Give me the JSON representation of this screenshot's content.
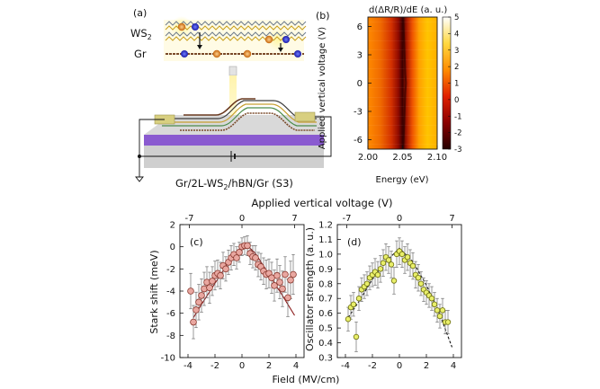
{
  "panel_a": {
    "label": "(a)",
    "layer_top": "WS",
    "layer_top_sub": "2",
    "layer_bottom": "Gr",
    "caption": "Gr/2L-WS",
    "caption_sub": "2",
    "caption_rest": "/hBN/Gr (S3)"
  },
  "chart_data": [
    {
      "id": "b",
      "type": "heatmap",
      "panel_label": "(b)",
      "title": "d(ΔR/R)/dE (a. u.)",
      "xlabel": "Energy (eV)",
      "ylabel": "Applied vertical voltage (V)",
      "xlim": [
        2.0,
        2.1
      ],
      "ylim": [
        -7,
        7
      ],
      "xticks": [
        2.0,
        2.05,
        2.1
      ],
      "xtick_labels": [
        "2.00",
        "2.05",
        "2.10"
      ],
      "yticks": [
        6,
        3,
        0,
        -3,
        -6
      ],
      "colorbar_ticks": [
        5,
        4,
        3,
        2,
        1,
        0,
        -1,
        -2,
        -3
      ],
      "colorbar_range": [
        -3,
        5
      ],
      "resonance_center_eV": [
        [
          -7,
          2.051
        ],
        [
          -5,
          2.052
        ],
        [
          -3,
          2.053
        ],
        [
          -1,
          2.054
        ],
        [
          0,
          2.055
        ],
        [
          1,
          2.054
        ],
        [
          3,
          2.053
        ],
        [
          5,
          2.052
        ],
        [
          7,
          2.051
        ]
      ]
    },
    {
      "id": "c",
      "type": "scatter",
      "panel_label": "(c)",
      "xlabel": "Field (MV/cm)",
      "ylabel": "Stark shift (meV)",
      "top_xlabel": "Applied vertical voltage (V)",
      "top_ticks": [
        -7,
        0,
        7
      ],
      "xlim": [
        -4.6,
        4.6
      ],
      "ylim": [
        -10,
        2
      ],
      "xticks": [
        -4,
        -2,
        0,
        2,
        4
      ],
      "yticks": [
        2,
        0,
        -2,
        -4,
        -6,
        -8,
        -10
      ],
      "points": [
        {
          "x": -3.8,
          "y": -4.0,
          "err": 1.6
        },
        {
          "x": -3.6,
          "y": -6.8,
          "err": 1.5
        },
        {
          "x": -3.4,
          "y": -5.7,
          "err": 1.6
        },
        {
          "x": -3.2,
          "y": -5.0,
          "err": 1.6
        },
        {
          "x": -3.0,
          "y": -4.4,
          "err": 1.5
        },
        {
          "x": -2.8,
          "y": -3.8,
          "err": 1.5
        },
        {
          "x": -2.6,
          "y": -3.2,
          "err": 1.4
        },
        {
          "x": -2.4,
          "y": -3.7,
          "err": 1.4
        },
        {
          "x": -2.2,
          "y": -3.1,
          "err": 1.3
        },
        {
          "x": -2.0,
          "y": -2.6,
          "err": 1.3
        },
        {
          "x": -1.8,
          "y": -2.4,
          "err": 1.2
        },
        {
          "x": -1.6,
          "y": -2.6,
          "err": 1.2
        },
        {
          "x": -1.4,
          "y": -1.7,
          "err": 1.2
        },
        {
          "x": -1.2,
          "y": -2.0,
          "err": 1.1
        },
        {
          "x": -1.0,
          "y": -1.4,
          "err": 1.1
        },
        {
          "x": -0.8,
          "y": -1.0,
          "err": 1.1
        },
        {
          "x": -0.6,
          "y": -0.7,
          "err": 1.0
        },
        {
          "x": -0.4,
          "y": -1.0,
          "err": 1.0
        },
        {
          "x": -0.2,
          "y": -0.5,
          "err": 0.9
        },
        {
          "x": 0.0,
          "y": 0.0,
          "err": 0.8
        },
        {
          "x": 0.2,
          "y": 0.1,
          "err": 0.8
        },
        {
          "x": 0.4,
          "y": 0.1,
          "err": 0.9
        },
        {
          "x": 0.6,
          "y": -0.6,
          "err": 1.0
        },
        {
          "x": 0.8,
          "y": -0.9,
          "err": 1.0
        },
        {
          "x": 1.0,
          "y": -1.0,
          "err": 1.1
        },
        {
          "x": 1.2,
          "y": -1.6,
          "err": 1.1
        },
        {
          "x": 1.4,
          "y": -1.8,
          "err": 1.2
        },
        {
          "x": 1.6,
          "y": -2.2,
          "err": 1.2
        },
        {
          "x": 1.8,
          "y": -2.5,
          "err": 1.3
        },
        {
          "x": 2.0,
          "y": -2.4,
          "err": 1.3
        },
        {
          "x": 2.2,
          "y": -2.8,
          "err": 1.4
        },
        {
          "x": 2.4,
          "y": -3.5,
          "err": 1.4
        },
        {
          "x": 2.6,
          "y": -2.6,
          "err": 1.5
        },
        {
          "x": 2.8,
          "y": -3.2,
          "err": 1.5
        },
        {
          "x": 3.0,
          "y": -3.8,
          "err": 1.6
        },
        {
          "x": 3.2,
          "y": -2.5,
          "err": 1.6
        },
        {
          "x": 3.4,
          "y": -4.6,
          "err": 1.7
        },
        {
          "x": 3.6,
          "y": -3.0,
          "err": 1.7
        },
        {
          "x": 3.8,
          "y": -2.5,
          "err": 1.8
        }
      ],
      "fit": {
        "style": "solid",
        "color": "#8b1a1a",
        "x": [
          -3.6,
          -3.0,
          -2.0,
          -1.0,
          0.0,
          0.4,
          1.0,
          2.0,
          3.0,
          3.9
        ],
        "y": [
          -6.4,
          -5.2,
          -3.3,
          -1.4,
          -0.15,
          0.1,
          -0.6,
          -2.5,
          -4.4,
          -6.2
        ]
      }
    },
    {
      "id": "d",
      "type": "scatter",
      "panel_label": "(d)",
      "xlabel": "Field (MV/cm)",
      "ylabel": "Oscillator strength (a. u.)",
      "top_ticks": [
        -7,
        0,
        7
      ],
      "xlim": [
        -4.6,
        4.6
      ],
      "ylim": [
        0.3,
        1.2
      ],
      "xticks": [
        -4,
        -2,
        0,
        2,
        4
      ],
      "yticks": [
        1.2,
        1.1,
        1.0,
        0.9,
        0.8,
        0.7,
        0.6,
        0.5,
        0.4,
        0.3
      ],
      "points": [
        {
          "x": -3.8,
          "y": 0.56,
          "err": 0.08
        },
        {
          "x": -3.6,
          "y": 0.64,
          "err": 0.08
        },
        {
          "x": -3.4,
          "y": 0.66,
          "err": 0.08
        },
        {
          "x": -3.2,
          "y": 0.44,
          "err": 0.1
        },
        {
          "x": -3.0,
          "y": 0.7,
          "err": 0.08
        },
        {
          "x": -2.8,
          "y": 0.76,
          "err": 0.08
        },
        {
          "x": -2.6,
          "y": 0.78,
          "err": 0.08
        },
        {
          "x": -2.4,
          "y": 0.8,
          "err": 0.08
        },
        {
          "x": -2.2,
          "y": 0.84,
          "err": 0.08
        },
        {
          "x": -2.0,
          "y": 0.86,
          "err": 0.08
        },
        {
          "x": -1.8,
          "y": 0.88,
          "err": 0.09
        },
        {
          "x": -1.6,
          "y": 0.86,
          "err": 0.09
        },
        {
          "x": -1.4,
          "y": 0.9,
          "err": 0.09
        },
        {
          "x": -1.2,
          "y": 0.94,
          "err": 0.09
        },
        {
          "x": -1.0,
          "y": 0.98,
          "err": 0.09
        },
        {
          "x": -0.8,
          "y": 0.96,
          "err": 0.09
        },
        {
          "x": -0.6,
          "y": 0.93,
          "err": 0.09
        },
        {
          "x": -0.4,
          "y": 0.82,
          "err": 0.09
        },
        {
          "x": -0.2,
          "y": 1.0,
          "err": 0.09
        },
        {
          "x": 0.0,
          "y": 1.02,
          "err": 0.09
        },
        {
          "x": 0.2,
          "y": 1.0,
          "err": 0.09
        },
        {
          "x": 0.4,
          "y": 0.96,
          "err": 0.09
        },
        {
          "x": 0.6,
          "y": 0.98,
          "err": 0.09
        },
        {
          "x": 0.8,
          "y": 0.94,
          "err": 0.09
        },
        {
          "x": 1.0,
          "y": 0.92,
          "err": 0.09
        },
        {
          "x": 1.2,
          "y": 0.86,
          "err": 0.09
        },
        {
          "x": 1.4,
          "y": 0.84,
          "err": 0.09
        },
        {
          "x": 1.6,
          "y": 0.8,
          "err": 0.08
        },
        {
          "x": 1.8,
          "y": 0.76,
          "err": 0.08
        },
        {
          "x": 2.0,
          "y": 0.74,
          "err": 0.08
        },
        {
          "x": 2.2,
          "y": 0.72,
          "err": 0.08
        },
        {
          "x": 2.4,
          "y": 0.7,
          "err": 0.08
        },
        {
          "x": 2.6,
          "y": 0.66,
          "err": 0.08
        },
        {
          "x": 2.8,
          "y": 0.62,
          "err": 0.08
        },
        {
          "x": 3.0,
          "y": 0.58,
          "err": 0.08
        },
        {
          "x": 3.2,
          "y": 0.62,
          "err": 0.08
        },
        {
          "x": 3.4,
          "y": 0.54,
          "err": 0.08
        },
        {
          "x": 3.6,
          "y": 0.54,
          "err": 0.08
        }
      ],
      "fit": {
        "style": "dashed",
        "color": "#111111",
        "x": [
          -3.8,
          -3.0,
          -2.0,
          -1.0,
          0.0,
          1.0,
          2.0,
          3.0,
          3.9
        ],
        "y": [
          0.57,
          0.68,
          0.83,
          0.95,
          1.04,
          0.95,
          0.79,
          0.59,
          0.37
        ]
      }
    }
  ]
}
